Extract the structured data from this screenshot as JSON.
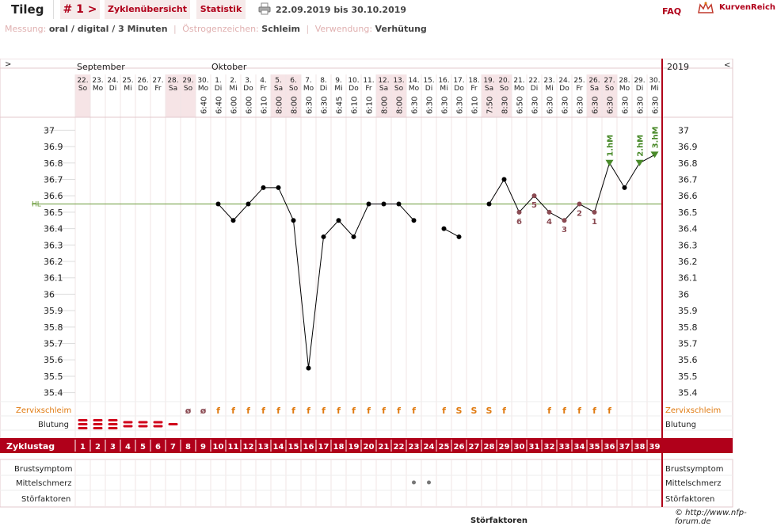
{
  "header": {
    "user_tab": "Tileg",
    "cycle_tab": "# 1 >",
    "overview_tab": "Zyklenübersicht",
    "stats_tab": "Statistik",
    "date_range": "22.09.2019 bis 30.10.2019",
    "faq": "FAQ",
    "brand": "KurvenReich",
    "print_icon": "printer-icon",
    "brand_icon": "crown-icon"
  },
  "info": {
    "measure_label": "Messung:",
    "measure_value": "oral / digital / 3 Minuten",
    "estrogen_label": "Östrogenzeichen:",
    "estrogen_value": "Schleim",
    "usage_label": "Verwendung:",
    "usage_value": "Verhütung"
  },
  "nav": {
    "prev": ">",
    "next": "<",
    "year": "2019"
  },
  "months": [
    "September",
    "Oktober"
  ],
  "colors": {
    "accent": "#b0001a",
    "weekend": "#f6e4e6",
    "curve": "#000000",
    "hl": "#6a9a3a",
    "excluded": "#8a4a52",
    "peak": "#4a8a2a",
    "mucus": "#e07a10"
  },
  "chart_data": {
    "type": "line",
    "ylim": [
      35.35,
      37.05
    ],
    "yticks": [
      "37",
      "36.9",
      "36.8",
      "36.7",
      "36.6",
      "36.5",
      "36.4",
      "36.3",
      "36.2",
      "36.1",
      "36",
      "35.9",
      "35.8",
      "35.7",
      "35.6",
      "35.5",
      "35.4"
    ],
    "hl_label": "HL",
    "hl_value": 36.55,
    "dates": [
      "22.",
      "23.",
      "24.",
      "25.",
      "26.",
      "27.",
      "28.",
      "29.",
      "30.",
      "1.",
      "2.",
      "3.",
      "4.",
      "5.",
      "6.",
      "7.",
      "8.",
      "9.",
      "10.",
      "11.",
      "12.",
      "13.",
      "14.",
      "15.",
      "16.",
      "17.",
      "18.",
      "19.",
      "20.",
      "21.",
      "22.",
      "23.",
      "24.",
      "25.",
      "26.",
      "27.",
      "28.",
      "29.",
      "30."
    ],
    "weekdays": [
      "So",
      "Mo",
      "Di",
      "Mi",
      "Do",
      "Fr",
      "Sa",
      "So",
      "Mo",
      "Di",
      "Mi",
      "Do",
      "Fr",
      "Sa",
      "So",
      "Mo",
      "Di",
      "Mi",
      "Do",
      "Fr",
      "Sa",
      "So",
      "Mo",
      "Di",
      "Mi",
      "Do",
      "Fr",
      "Sa",
      "So",
      "Mo",
      "Di",
      "Mi",
      "Do",
      "Fr",
      "Sa",
      "So",
      "Mo",
      "Di",
      "Mi"
    ],
    "times": [
      "",
      "",
      "",
      "",
      "",
      "",
      "",
      "",
      "6:40",
      "6:40",
      "6:00",
      "6:00",
      "6:10",
      "8:00",
      "8:00",
      "6:30",
      "6:30",
      "6:45",
      "6:10",
      "6:10",
      "8:00",
      "8:00",
      "6:30",
      "6:30",
      "6:30",
      "6:30",
      "6:10",
      "7:50",
      "8:30",
      "6:50",
      "6:30",
      "6:30",
      "6:30",
      "6:30",
      "6:30",
      "6:30",
      "6:30",
      "6:30",
      "6:30"
    ],
    "cycle_days": [
      "1",
      "2",
      "3",
      "4",
      "5",
      "6",
      "7",
      "8",
      "9",
      "10",
      "11",
      "12",
      "13",
      "14",
      "15",
      "16",
      "17",
      "18",
      "19",
      "20",
      "21",
      "22",
      "23",
      "24",
      "25",
      "26",
      "27",
      "28",
      "29",
      "30",
      "31",
      "32",
      "33",
      "34",
      "35",
      "36",
      "37",
      "38",
      "39"
    ],
    "temps": [
      null,
      null,
      null,
      null,
      null,
      null,
      null,
      null,
      null,
      36.55,
      36.45,
      36.55,
      36.65,
      36.65,
      36.45,
      35.55,
      36.35,
      36.45,
      36.35,
      36.55,
      36.55,
      36.55,
      36.45,
      null,
      36.4,
      36.35,
      null,
      36.55,
      36.7,
      36.5,
      36.6,
      36.5,
      36.45,
      36.55,
      36.5,
      36.8,
      36.65,
      36.8,
      36.85
    ],
    "excluded_numbers": [
      {
        "day": 30,
        "label": "6"
      },
      {
        "day": 31,
        "label": "5"
      },
      {
        "day": 32,
        "label": "4"
      },
      {
        "day": 33,
        "label": "3"
      },
      {
        "day": 34,
        "label": "2"
      },
      {
        "day": 35,
        "label": "1"
      }
    ],
    "high_measurements": [
      {
        "day": 36,
        "label": "1.hM"
      },
      {
        "day": 38,
        "label": "2.hM"
      },
      {
        "day": 39,
        "label": "3.hM"
      }
    ],
    "mucus": [
      "",
      "",
      "",
      "",
      "",
      "",
      "",
      "ø",
      "ø",
      "f",
      "f",
      "f",
      "f",
      "f",
      "f",
      "f",
      "f",
      "f",
      "f",
      "f",
      "f",
      "f",
      "f",
      "",
      "f",
      "S",
      "S",
      "S",
      "f",
      "",
      "",
      "f",
      "f",
      "f",
      "f",
      "f",
      "",
      "",
      ""
    ],
    "bleeding": [
      3,
      3,
      3,
      2,
      2,
      2,
      1,
      0,
      0,
      0,
      0,
      0,
      0,
      0,
      0,
      0,
      0,
      0,
      0,
      0,
      0,
      0,
      0,
      0,
      0,
      0,
      0,
      0,
      0,
      0,
      0,
      0,
      0,
      0,
      0,
      0,
      0,
      0,
      0
    ],
    "mittelschmerz": [
      23,
      24
    ],
    "rows": {
      "mucus": "Zervixschleim",
      "bleeding": "Blutung",
      "cycle_day": "Zyklustag",
      "breast": "Brustsymptom",
      "mittel": "Mittelschmerz",
      "disturb": "Störfaktoren"
    }
  },
  "footer": {
    "credit": "© http://www.nfp-forum.de",
    "cut_label": "Störfaktoren"
  }
}
